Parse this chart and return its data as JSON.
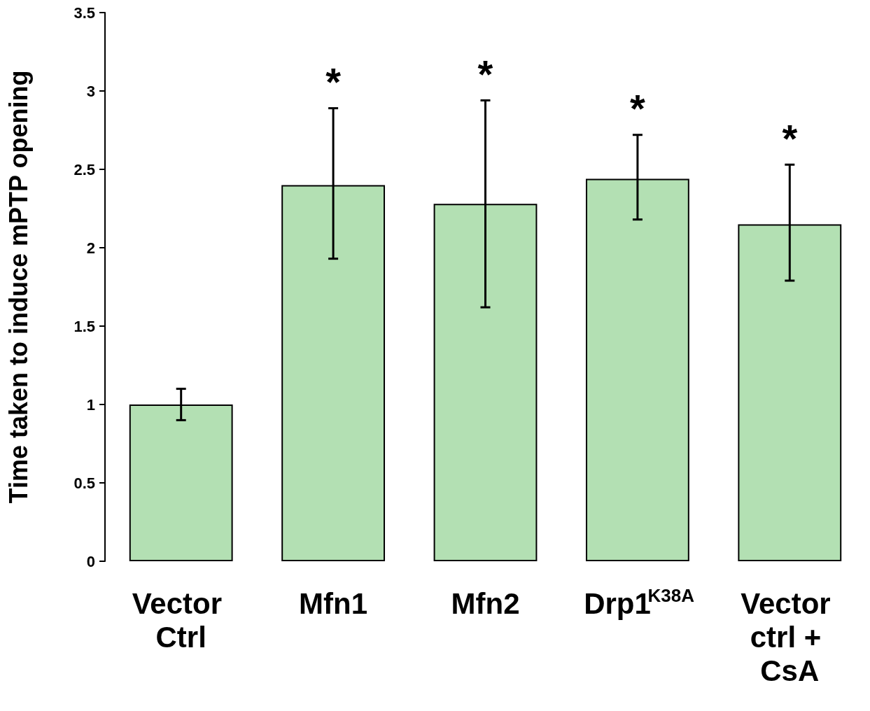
{
  "chart_data": {
    "type": "bar",
    "ylabel": "Time taken to induce mPTP opening",
    "categories": [
      "Vector Ctrl",
      "Mfn1",
      "Mfn2",
      "Drp1$^{K38A}$",
      "Vector ctrl + CsA"
    ],
    "values": [
      1.0,
      2.4,
      2.28,
      2.44,
      2.15
    ],
    "errors": [
      [
        0.9,
        1.1
      ],
      [
        1.93,
        2.89
      ],
      [
        1.62,
        2.94
      ],
      [
        2.18,
        2.72
      ],
      [
        1.79,
        2.53
      ]
    ],
    "color": "#b3e0b3",
    "ylim": [
      0,
      3.5
    ],
    "yticks": [
      0,
      0.5,
      1,
      1.5,
      2,
      2.5,
      3,
      3.5
    ],
    "grid": false,
    "annotations": [
      {
        "text": "*",
        "x": "Mfn1",
        "y": 2.89
      },
      {
        "text": "*",
        "x": "Mfn2",
        "y": 2.94
      },
      {
        "text": "*",
        "x": "Drp1$^{K38A}$",
        "y": 2.72
      },
      {
        "text": "*",
        "x": "Vector ctrl + CsA",
        "y": 2.53
      }
    ]
  }
}
